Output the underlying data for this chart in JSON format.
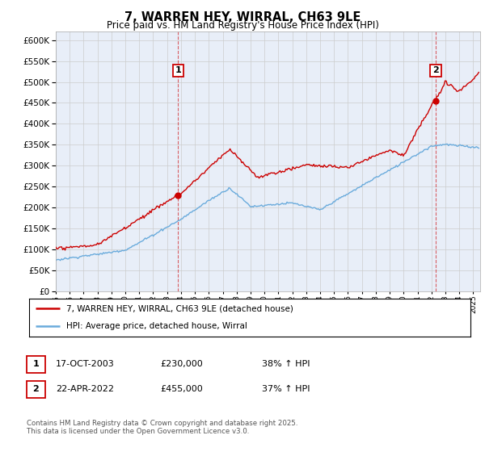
{
  "title": "7, WARREN HEY, WIRRAL, CH63 9LE",
  "subtitle": "Price paid vs. HM Land Registry's House Price Index (HPI)",
  "ylim": [
    0,
    620000
  ],
  "yticks": [
    0,
    50000,
    100000,
    150000,
    200000,
    250000,
    300000,
    350000,
    400000,
    450000,
    500000,
    550000,
    600000
  ],
  "red_color": "#cc0000",
  "blue_color": "#6aabdc",
  "grid_color": "#cccccc",
  "bg_color": "#ffffff",
  "plot_bg_color": "#e8eef8",
  "transaction1_x": 2003.8,
  "transaction1_y": 230000,
  "transaction1_label": "1",
  "transaction2_x": 2022.3,
  "transaction2_y": 455000,
  "transaction2_label": "2",
  "legend_line1": "7, WARREN HEY, WIRRAL, CH63 9LE (detached house)",
  "legend_line2": "HPI: Average price, detached house, Wirral",
  "table_row1": [
    "1",
    "17-OCT-2003",
    "£230,000",
    "38% ↑ HPI"
  ],
  "table_row2": [
    "2",
    "22-APR-2022",
    "£455,000",
    "37% ↑ HPI"
  ],
  "footnote": "Contains HM Land Registry data © Crown copyright and database right 2025.\nThis data is licensed under the Open Government Licence v3.0.",
  "xmin": 1995,
  "xmax": 2025.5
}
